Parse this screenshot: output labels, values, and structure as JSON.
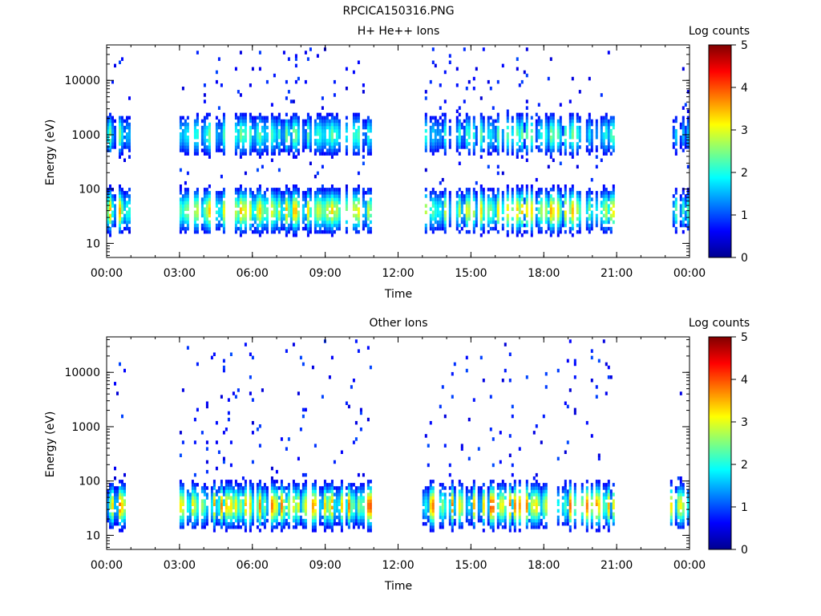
{
  "page_title": "RPCICA150316.PNG",
  "chart_data": [
    {
      "type": "heatmap",
      "title": "H+ He++ Ions",
      "xlabel": "Time",
      "ylabel": "Energy (eV)",
      "y_scale": "log",
      "ylim": [
        5.5,
        45000
      ],
      "xlim": [
        "00:00",
        "24:00"
      ],
      "x_ticks": [
        "00:00",
        "03:00",
        "06:00",
        "09:00",
        "12:00",
        "15:00",
        "18:00",
        "21:00",
        "00:00"
      ],
      "y_ticks": [
        "10",
        "100",
        "1000",
        "10000"
      ],
      "y_tick_values": [
        10,
        100,
        1000,
        10000
      ],
      "colorbar": {
        "label": "Log counts",
        "min": 0,
        "max": 5,
        "ticks": [
          "0",
          "1",
          "2",
          "3",
          "4",
          "5"
        ],
        "colormap": "jet"
      },
      "coverage_hours": [
        [
          0.0,
          0.9
        ],
        [
          3.0,
          10.9
        ],
        [
          13.0,
          20.9
        ],
        [
          23.2,
          23.9
        ]
      ],
      "band_peaks_eV": [
        40,
        1000
      ],
      "band_peaks_log_counts": [
        3.6,
        2.6
      ],
      "max_log_counts": 5.0
    },
    {
      "type": "heatmap",
      "title": "Other Ions",
      "xlabel": "Time",
      "ylabel": "Energy (eV)",
      "y_scale": "log",
      "ylim": [
        5.5,
        45000
      ],
      "xlim": [
        "00:00",
        "24:00"
      ],
      "x_ticks": [
        "00:00",
        "03:00",
        "06:00",
        "09:00",
        "12:00",
        "15:00",
        "18:00",
        "21:00",
        "00:00"
      ],
      "y_ticks": [
        "10",
        "100",
        "1000",
        "10000"
      ],
      "y_tick_values": [
        10,
        100,
        1000,
        10000
      ],
      "colorbar": {
        "label": "Log counts",
        "min": 0,
        "max": 5,
        "ticks": [
          "0",
          "1",
          "2",
          "3",
          "4",
          "5"
        ],
        "colormap": "jet"
      },
      "coverage_hours": [
        [
          0.0,
          0.9
        ],
        [
          3.0,
          10.9
        ],
        [
          13.0,
          20.9
        ],
        [
          23.2,
          23.9
        ]
      ],
      "band_peaks_eV": [
        35
      ],
      "band_peaks_log_counts": [
        4.0
      ],
      "max_log_counts": 4.3
    }
  ]
}
